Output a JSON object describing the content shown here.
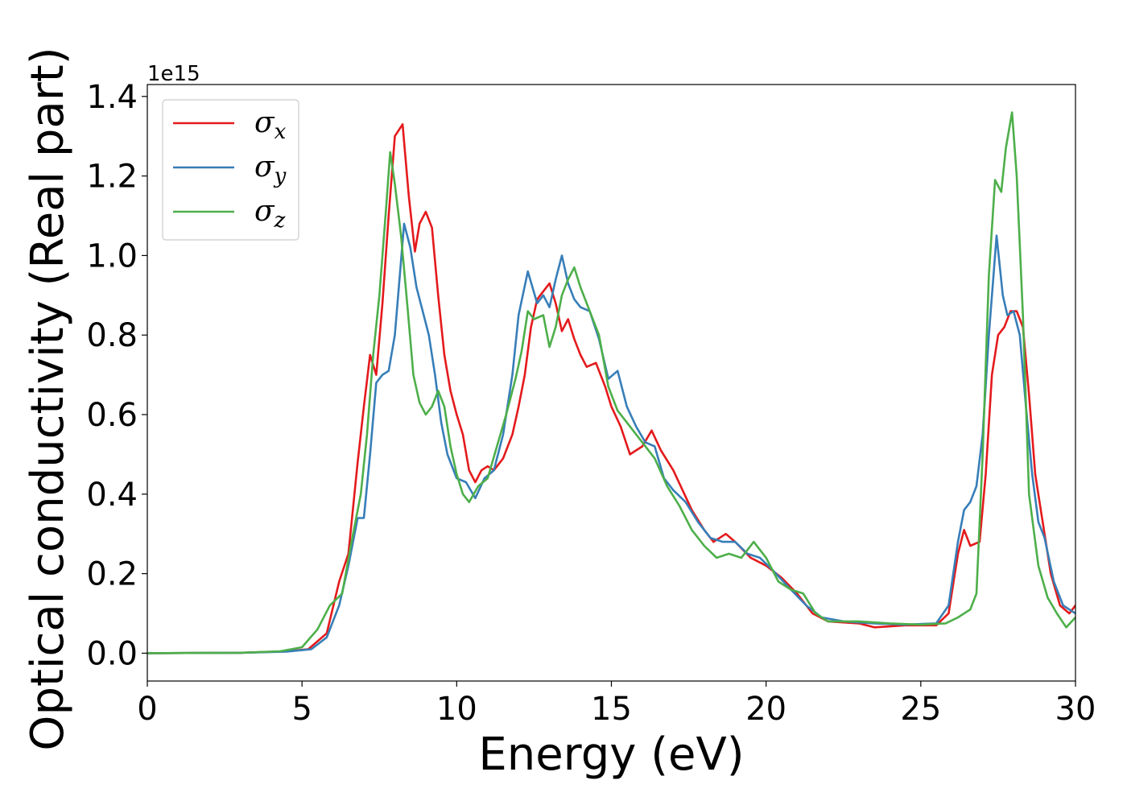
{
  "chart_data": {
    "type": "line",
    "xlabel": "Energy (eV)",
    "ylabel": "Optical conductivity (Real part)",
    "y_offset_label": "1e15",
    "xlim": [
      0,
      30
    ],
    "ylim": [
      -0.07,
      1.43
    ],
    "xticks": [
      0,
      5,
      10,
      15,
      20,
      25,
      30
    ],
    "yticks": [
      0.0,
      0.2,
      0.4,
      0.6,
      0.8,
      1.0,
      1.2,
      1.4
    ],
    "ytick_labels": [
      "0.0",
      "0.2",
      "0.4",
      "0.6",
      "0.8",
      "1.0",
      "1.2",
      "1.4"
    ],
    "legend_position": "upper-left",
    "grid": false,
    "series": [
      {
        "name": "σx",
        "name_base": "σ",
        "name_sub": "x",
        "color": "#e41a1c",
        "points": [
          [
            0,
            0
          ],
          [
            3,
            0.001
          ],
          [
            4.5,
            0.005
          ],
          [
            5.2,
            0.01
          ],
          [
            5.8,
            0.05
          ],
          [
            6.2,
            0.18
          ],
          [
            6.5,
            0.25
          ],
          [
            6.8,
            0.48
          ],
          [
            7.0,
            0.62
          ],
          [
            7.2,
            0.75
          ],
          [
            7.4,
            0.7
          ],
          [
            7.6,
            0.88
          ],
          [
            7.8,
            1.1
          ],
          [
            8.0,
            1.3
          ],
          [
            8.25,
            1.33
          ],
          [
            8.45,
            1.15
          ],
          [
            8.65,
            1.01
          ],
          [
            8.8,
            1.08
          ],
          [
            9.0,
            1.11
          ],
          [
            9.2,
            1.07
          ],
          [
            9.4,
            0.9
          ],
          [
            9.6,
            0.75
          ],
          [
            9.8,
            0.66
          ],
          [
            10.0,
            0.6
          ],
          [
            10.2,
            0.55
          ],
          [
            10.4,
            0.46
          ],
          [
            10.6,
            0.43
          ],
          [
            10.8,
            0.46
          ],
          [
            11.0,
            0.47
          ],
          [
            11.2,
            0.46
          ],
          [
            11.5,
            0.49
          ],
          [
            11.8,
            0.55
          ],
          [
            12.0,
            0.62
          ],
          [
            12.2,
            0.7
          ],
          [
            12.4,
            0.82
          ],
          [
            12.6,
            0.89
          ],
          [
            12.8,
            0.91
          ],
          [
            13.0,
            0.93
          ],
          [
            13.2,
            0.88
          ],
          [
            13.4,
            0.81
          ],
          [
            13.6,
            0.84
          ],
          [
            13.8,
            0.79
          ],
          [
            14.0,
            0.75
          ],
          [
            14.2,
            0.72
          ],
          [
            14.5,
            0.73
          ],
          [
            14.8,
            0.67
          ],
          [
            15.0,
            0.62
          ],
          [
            15.3,
            0.57
          ],
          [
            15.6,
            0.5
          ],
          [
            16.0,
            0.52
          ],
          [
            16.3,
            0.56
          ],
          [
            16.6,
            0.51
          ],
          [
            17.0,
            0.46
          ],
          [
            17.3,
            0.41
          ],
          [
            17.6,
            0.36
          ],
          [
            18.0,
            0.31
          ],
          [
            18.3,
            0.28
          ],
          [
            18.7,
            0.3
          ],
          [
            19.0,
            0.28
          ],
          [
            19.5,
            0.24
          ],
          [
            20.0,
            0.22
          ],
          [
            20.5,
            0.19
          ],
          [
            21.0,
            0.15
          ],
          [
            21.5,
            0.1
          ],
          [
            22.0,
            0.08
          ],
          [
            23.0,
            0.075
          ],
          [
            23.5,
            0.065
          ],
          [
            24.5,
            0.07
          ],
          [
            25.5,
            0.07
          ],
          [
            25.9,
            0.1
          ],
          [
            26.2,
            0.25
          ],
          [
            26.4,
            0.31
          ],
          [
            26.6,
            0.27
          ],
          [
            26.9,
            0.28
          ],
          [
            27.1,
            0.45
          ],
          [
            27.3,
            0.7
          ],
          [
            27.5,
            0.8
          ],
          [
            27.7,
            0.82
          ],
          [
            27.9,
            0.86
          ],
          [
            28.1,
            0.86
          ],
          [
            28.3,
            0.82
          ],
          [
            28.5,
            0.65
          ],
          [
            28.7,
            0.45
          ],
          [
            28.9,
            0.35
          ],
          [
            29.2,
            0.2
          ],
          [
            29.5,
            0.12
          ],
          [
            29.8,
            0.1
          ],
          [
            30,
            0.12
          ]
        ]
      },
      {
        "name": "σy",
        "name_base": "σ",
        "name_sub": "y",
        "color": "#377eb8",
        "points": [
          [
            0,
            0
          ],
          [
            3,
            0.001
          ],
          [
            4.5,
            0.004
          ],
          [
            5.3,
            0.01
          ],
          [
            5.8,
            0.04
          ],
          [
            6.2,
            0.12
          ],
          [
            6.5,
            0.22
          ],
          [
            6.8,
            0.34
          ],
          [
            7.0,
            0.34
          ],
          [
            7.2,
            0.5
          ],
          [
            7.4,
            0.68
          ],
          [
            7.6,
            0.7
          ],
          [
            7.8,
            0.71
          ],
          [
            8.0,
            0.8
          ],
          [
            8.3,
            1.08
          ],
          [
            8.5,
            1.02
          ],
          [
            8.7,
            0.92
          ],
          [
            8.9,
            0.86
          ],
          [
            9.1,
            0.8
          ],
          [
            9.3,
            0.7
          ],
          [
            9.5,
            0.58
          ],
          [
            9.7,
            0.5
          ],
          [
            10.0,
            0.44
          ],
          [
            10.3,
            0.43
          ],
          [
            10.6,
            0.39
          ],
          [
            10.9,
            0.44
          ],
          [
            11.2,
            0.46
          ],
          [
            11.5,
            0.55
          ],
          [
            11.8,
            0.7
          ],
          [
            12.0,
            0.85
          ],
          [
            12.3,
            0.96
          ],
          [
            12.6,
            0.88
          ],
          [
            12.8,
            0.9
          ],
          [
            13.0,
            0.87
          ],
          [
            13.2,
            0.94
          ],
          [
            13.4,
            1.0
          ],
          [
            13.6,
            0.93
          ],
          [
            13.8,
            0.89
          ],
          [
            14.0,
            0.87
          ],
          [
            14.3,
            0.86
          ],
          [
            14.6,
            0.79
          ],
          [
            14.9,
            0.69
          ],
          [
            15.2,
            0.71
          ],
          [
            15.5,
            0.62
          ],
          [
            15.8,
            0.57
          ],
          [
            16.1,
            0.53
          ],
          [
            16.4,
            0.52
          ],
          [
            16.7,
            0.44
          ],
          [
            17.0,
            0.41
          ],
          [
            17.4,
            0.38
          ],
          [
            17.8,
            0.33
          ],
          [
            18.2,
            0.29
          ],
          [
            18.6,
            0.28
          ],
          [
            19.0,
            0.28
          ],
          [
            19.4,
            0.25
          ],
          [
            19.8,
            0.24
          ],
          [
            20.2,
            0.21
          ],
          [
            20.8,
            0.16
          ],
          [
            21.3,
            0.12
          ],
          [
            21.8,
            0.09
          ],
          [
            22.5,
            0.08
          ],
          [
            23.5,
            0.075
          ],
          [
            24.5,
            0.072
          ],
          [
            25.5,
            0.075
          ],
          [
            25.9,
            0.12
          ],
          [
            26.2,
            0.28
          ],
          [
            26.4,
            0.36
          ],
          [
            26.6,
            0.38
          ],
          [
            26.8,
            0.42
          ],
          [
            27.0,
            0.55
          ],
          [
            27.2,
            0.8
          ],
          [
            27.45,
            1.05
          ],
          [
            27.65,
            0.9
          ],
          [
            27.8,
            0.85
          ],
          [
            28.0,
            0.86
          ],
          [
            28.2,
            0.8
          ],
          [
            28.4,
            0.62
          ],
          [
            28.6,
            0.45
          ],
          [
            28.8,
            0.33
          ],
          [
            29.0,
            0.29
          ],
          [
            29.3,
            0.18
          ],
          [
            29.6,
            0.12
          ],
          [
            30,
            0.1
          ]
        ]
      },
      {
        "name": "σz",
        "name_base": "σ",
        "name_sub": "z",
        "color": "#4daf4a",
        "points": [
          [
            0,
            0
          ],
          [
            3,
            0.001
          ],
          [
            4.3,
            0.005
          ],
          [
            5.0,
            0.015
          ],
          [
            5.5,
            0.06
          ],
          [
            5.9,
            0.12
          ],
          [
            6.3,
            0.15
          ],
          [
            6.6,
            0.28
          ],
          [
            6.9,
            0.4
          ],
          [
            7.1,
            0.55
          ],
          [
            7.3,
            0.75
          ],
          [
            7.5,
            0.9
          ],
          [
            7.7,
            1.1
          ],
          [
            7.85,
            1.26
          ],
          [
            8.0,
            1.18
          ],
          [
            8.2,
            1.05
          ],
          [
            8.4,
            0.88
          ],
          [
            8.6,
            0.7
          ],
          [
            8.8,
            0.63
          ],
          [
            9.0,
            0.6
          ],
          [
            9.2,
            0.62
          ],
          [
            9.4,
            0.66
          ],
          [
            9.6,
            0.62
          ],
          [
            9.8,
            0.52
          ],
          [
            10.0,
            0.45
          ],
          [
            10.2,
            0.4
          ],
          [
            10.4,
            0.38
          ],
          [
            10.7,
            0.42
          ],
          [
            11.0,
            0.44
          ],
          [
            11.3,
            0.52
          ],
          [
            11.6,
            0.6
          ],
          [
            11.9,
            0.69
          ],
          [
            12.1,
            0.76
          ],
          [
            12.3,
            0.86
          ],
          [
            12.5,
            0.84
          ],
          [
            12.8,
            0.85
          ],
          [
            13.0,
            0.77
          ],
          [
            13.2,
            0.82
          ],
          [
            13.4,
            0.9
          ],
          [
            13.6,
            0.94
          ],
          [
            13.8,
            0.97
          ],
          [
            14.0,
            0.92
          ],
          [
            14.3,
            0.86
          ],
          [
            14.6,
            0.8
          ],
          [
            14.9,
            0.67
          ],
          [
            15.2,
            0.61
          ],
          [
            15.6,
            0.57
          ],
          [
            16.0,
            0.53
          ],
          [
            16.4,
            0.49
          ],
          [
            16.8,
            0.42
          ],
          [
            17.2,
            0.37
          ],
          [
            17.6,
            0.31
          ],
          [
            18.0,
            0.27
          ],
          [
            18.4,
            0.24
          ],
          [
            18.8,
            0.25
          ],
          [
            19.2,
            0.24
          ],
          [
            19.6,
            0.28
          ],
          [
            20.0,
            0.24
          ],
          [
            20.4,
            0.18
          ],
          [
            20.8,
            0.16
          ],
          [
            21.2,
            0.15
          ],
          [
            21.6,
            0.1
          ],
          [
            22.0,
            0.08
          ],
          [
            23.0,
            0.08
          ],
          [
            24.0,
            0.075
          ],
          [
            25.0,
            0.072
          ],
          [
            25.8,
            0.075
          ],
          [
            26.2,
            0.09
          ],
          [
            26.6,
            0.11
          ],
          [
            26.8,
            0.15
          ],
          [
            27.0,
            0.5
          ],
          [
            27.2,
            0.95
          ],
          [
            27.4,
            1.19
          ],
          [
            27.6,
            1.16
          ],
          [
            27.75,
            1.27
          ],
          [
            27.95,
            1.36
          ],
          [
            28.1,
            1.2
          ],
          [
            28.3,
            0.85
          ],
          [
            28.5,
            0.4
          ],
          [
            28.8,
            0.22
          ],
          [
            29.1,
            0.14
          ],
          [
            29.4,
            0.1
          ],
          [
            29.7,
            0.065
          ],
          [
            30,
            0.09
          ]
        ]
      }
    ]
  }
}
